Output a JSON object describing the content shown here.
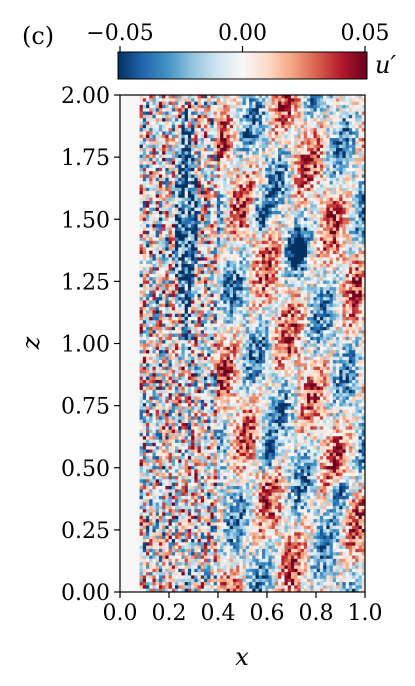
{
  "panel_label": "(c)",
  "chart_data": {
    "type": "heatmap",
    "title": "",
    "xlabel": "x",
    "ylabel": "z",
    "xlim": [
      0.0,
      1.0
    ],
    "ylim": [
      0.0,
      2.0
    ],
    "xticks": [
      0.0,
      0.2,
      0.4,
      0.6,
      0.8,
      1.0
    ],
    "xtick_labels": [
      "0.0",
      "0.2",
      "0.4",
      "0.6",
      "0.8",
      "1.0"
    ],
    "yticks": [
      0.0,
      0.25,
      0.5,
      0.75,
      1.0,
      1.25,
      1.5,
      1.75,
      2.0
    ],
    "ytick_labels": [
      "0.00",
      "0.25",
      "0.50",
      "0.75",
      "1.00",
      "1.25",
      "1.50",
      "1.75",
      "2.00"
    ],
    "grid": false,
    "colorbar": {
      "label": "u′",
      "orientation": "horizontal",
      "placement": "top",
      "colormap": "RdBu_r",
      "range": [
        -0.05,
        0.05
      ],
      "ticks": [
        -0.05,
        0.0,
        0.05
      ],
      "tick_labels": [
        "−0.05",
        "0.00",
        "0.05"
      ]
    },
    "field_features": {
      "wall_gap_x": [
        0.0,
        0.08
      ],
      "fine_streak_region_x": [
        0.08,
        0.4
      ],
      "turbulent_region_x": [
        0.4,
        1.0
      ],
      "low_speed_streak": {
        "x_center": 0.27,
        "z_range": [
          1.0,
          1.95
        ]
      },
      "low_speed_blobs": [
        {
          "x": 0.57,
          "z": 1.52
        },
        {
          "x": 0.72,
          "z": 1.38
        },
        {
          "x": 0.6,
          "z": 0.55
        },
        {
          "x": 0.9,
          "z": 0.4
        }
      ]
    }
  },
  "colors": {
    "negative": "#053061",
    "zero": "#f7f7f7",
    "positive": "#67001f"
  }
}
